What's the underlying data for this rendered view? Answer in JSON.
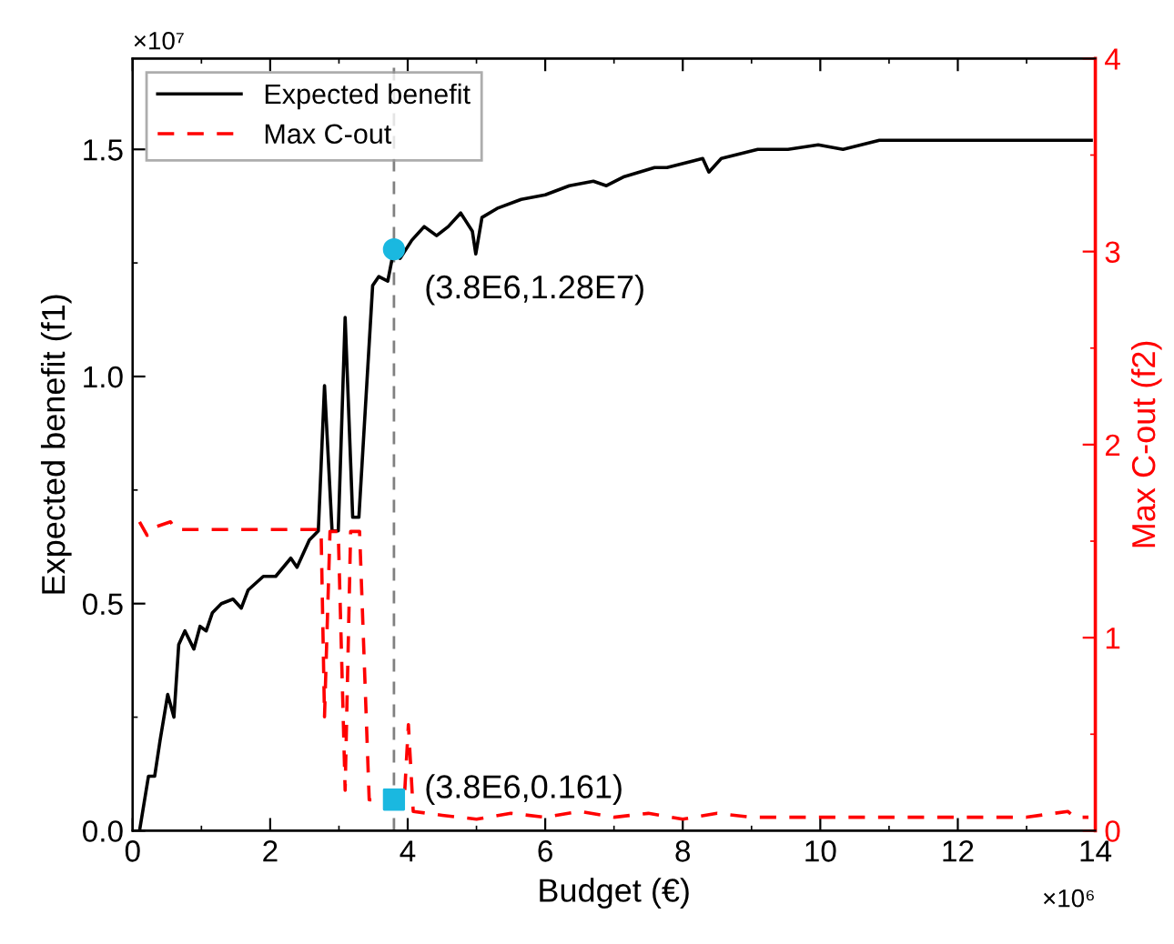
{
  "chart_data": {
    "type": "line",
    "xlabel": "Budget (€)",
    "ylabel": "Expected benefit (f1)",
    "y2label": "Max C-out (f2)",
    "xlim": [
      0,
      14
    ],
    "xticks": [
      0,
      2,
      4,
      6,
      8,
      10,
      12,
      14
    ],
    "ylim": [
      0,
      1.7
    ],
    "yticks": [
      {
        "value": 0,
        "label": "0.0"
      },
      0.5,
      {
        "value": 1,
        "label": "1.0"
      },
      1.5
    ],
    "y2lim": [
      0,
      4
    ],
    "y2ticks": [
      0,
      1,
      2,
      3,
      4
    ],
    "legend": "top left",
    "grid": false,
    "series": [
      {
        "name": "Expected benefit",
        "color": "#000000",
        "line_style": "solid",
        "x": [
          0.1,
          0.23,
          0.32,
          0.4,
          0.51,
          0.6,
          0.67,
          0.76,
          0.89,
          0.98,
          1.07,
          1.16,
          1.29,
          1.46,
          1.58,
          1.68,
          1.9,
          2.08,
          2.3,
          2.39,
          2.57,
          2.7,
          2.79,
          2.9,
          2.99,
          3.09,
          3.2,
          3.29,
          3.49,
          3.58,
          3.71,
          3.8,
          3.89,
          4.06,
          4.24,
          4.42,
          4.59,
          4.77,
          4.94,
          4.99,
          5.08,
          5.3,
          5.65,
          6.0,
          6.35,
          6.7,
          6.89,
          7.15,
          7.59,
          7.77,
          8.29,
          8.38,
          8.56,
          9.09,
          9.53,
          9.97,
          10.33,
          10.86,
          11.3,
          12.18,
          13.06,
          13.94
        ],
        "values": [
          0,
          0.12,
          0.12,
          0.2,
          0.3,
          0.25,
          0.41,
          0.44,
          0.4,
          0.45,
          0.44,
          0.48,
          0.5,
          0.51,
          0.49,
          0.53,
          0.56,
          0.56,
          0.6,
          0.58,
          0.64,
          0.66,
          0.98,
          0.66,
          0.66,
          1.13,
          0.69,
          0.69,
          1.2,
          1.22,
          1.21,
          1.28,
          1.26,
          1.3,
          1.33,
          1.31,
          1.33,
          1.36,
          1.32,
          1.27,
          1.35,
          1.37,
          1.39,
          1.4,
          1.42,
          1.43,
          1.42,
          1.44,
          1.46,
          1.46,
          1.48,
          1.45,
          1.48,
          1.5,
          1.5,
          1.51,
          1.5,
          1.52,
          1.52,
          1.52,
          1.52,
          1.52
        ]
      },
      {
        "name": "Max C-out",
        "color": "#ff0000",
        "axis": "y2",
        "line_style": "dashed",
        "x": [
          0.1,
          0.21,
          0.3,
          0.55,
          0.63,
          1.5,
          2.7,
          2.74,
          2.79,
          2.87,
          2.99,
          3.09,
          3.17,
          3.3,
          3.44,
          3.8,
          3.95,
          4.01,
          4.08,
          4.5,
          5.0,
          5.5,
          6.0,
          6.5,
          7.0,
          7.5,
          8.0,
          8.5,
          9.0,
          10.0,
          11.0,
          12.0,
          13.0,
          13.6,
          13.7,
          13.9
        ],
        "values": [
          1.6,
          1.53,
          1.57,
          1.6,
          1.56,
          1.56,
          1.56,
          1.56,
          0.59,
          1.55,
          1.55,
          0.21,
          1.55,
          1.55,
          0.16,
          0.16,
          0.16,
          0.55,
          0.1,
          0.08,
          0.06,
          0.09,
          0.07,
          0.1,
          0.07,
          0.09,
          0.06,
          0.09,
          0.07,
          0.07,
          0.07,
          0.07,
          0.07,
          0.1,
          0.07,
          0.07
        ]
      },
      {
        "type": "scatter",
        "color": "#1ab8e0",
        "marker": "circle",
        "x": [
          3.8
        ],
        "values": [
          1.28
        ]
      },
      {
        "type": "scatter",
        "color": "#1ab8e0",
        "marker": "square",
        "axis": "y2",
        "x": [
          3.8
        ],
        "values": [
          0.161
        ]
      }
    ],
    "ref_lines": [
      {
        "axis": "x",
        "value": 3.8,
        "color": "#808080",
        "line_style": "dashed"
      }
    ],
    "annotations": [
      {
        "text": "(3.8E6,1.28E7)",
        "x": 3.8,
        "y": 1.28
      },
      {
        "text": "(3.8E6,0.161)",
        "x": 3.8,
        "y": 0.18
      },
      "×10⁷",
      "×10⁶"
    ]
  }
}
